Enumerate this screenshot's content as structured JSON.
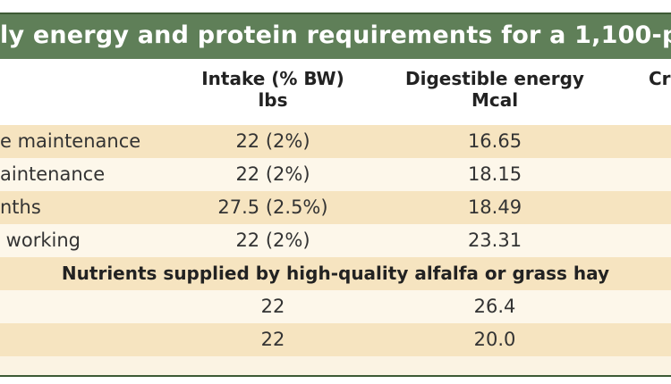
{
  "title": "ly energy and protein requirements for a 1,100-p",
  "headers": {
    "intake_line1": "Intake (% BW)",
    "intake_line2": "lbs",
    "de_line1": "Digestible energy",
    "de_line2": "Mcal",
    "cr_partial": "Cr"
  },
  "rows": [
    {
      "label": "e maintenance",
      "intake": "22 (2%)",
      "de": "16.65"
    },
    {
      "label": "aintenance",
      "intake": "22 (2%)",
      "de": "18.15"
    },
    {
      "label": "nths",
      "intake": "27.5 (2.5%)",
      "de": "18.49"
    },
    {
      "label": " working",
      "intake": "22 (2%)",
      "de": "23.31"
    }
  ],
  "subheading": "Nutrients supplied by high-quality alfalfa or grass hay",
  "hay_rows": [
    {
      "label": "",
      "intake": "22",
      "de": "26.4"
    },
    {
      "label": "",
      "intake": "22",
      "de": "20.0"
    }
  ],
  "colors": {
    "title_bg": "#5f7f58",
    "row_alt": "#f6e4c0",
    "row_plain": "#fdf7ea"
  }
}
